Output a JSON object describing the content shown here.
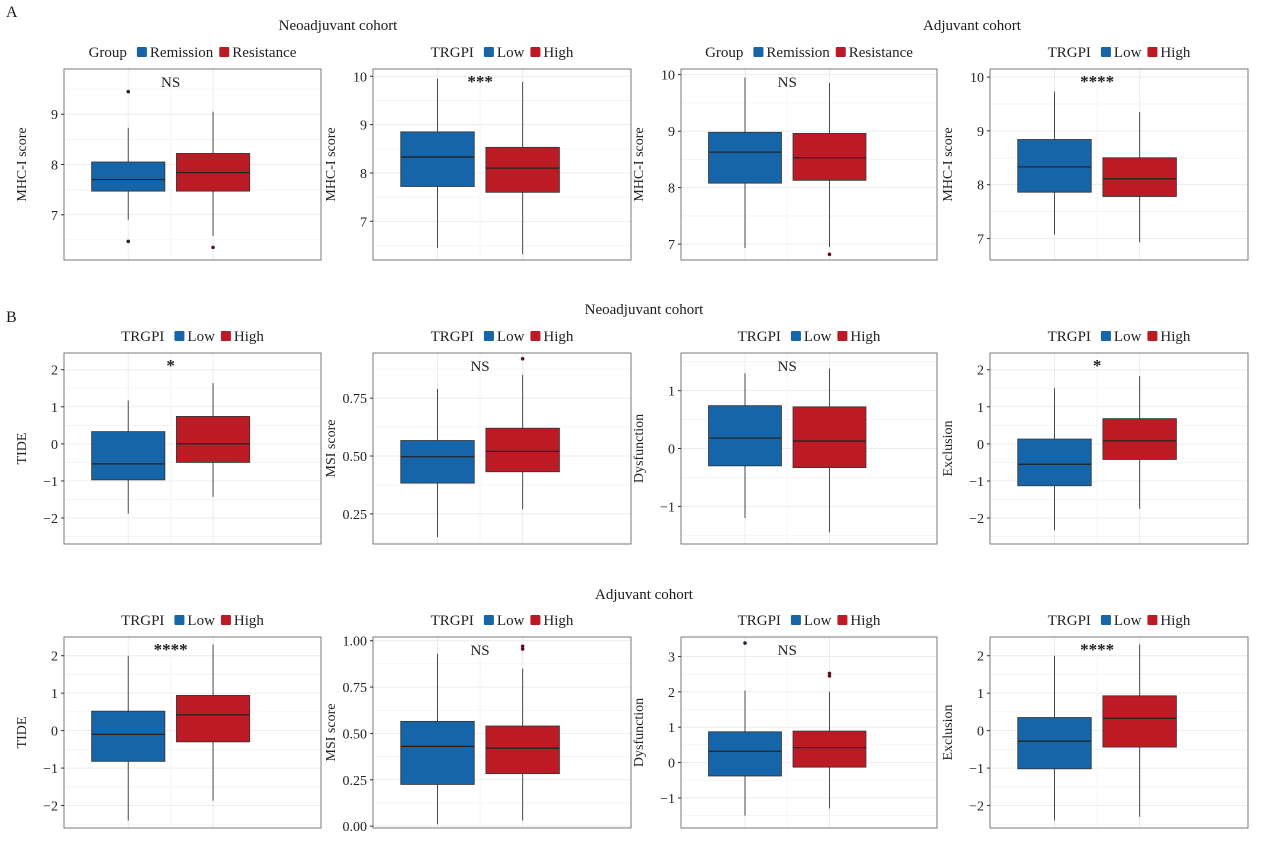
{
  "figure": {
    "section_a_label": "A",
    "section_b_label": "B",
    "colors": {
      "low": "#1565a8",
      "high": "#bc1a24",
      "frame": "#7a7a7a",
      "grid": "#ececec"
    }
  },
  "cohorts": {
    "a_left": "Neoadjuvant cohort",
    "a_right": "Adjuvant cohort",
    "b_top": "Neoadjuvant cohort",
    "b_bottom": "Adjuvant cohort"
  },
  "chart_data": [
    {
      "id": "A1",
      "type": "box",
      "title": "",
      "ylabel": "MHC-I score",
      "legend_title": "Group",
      "legend": [
        "Remission",
        "Resistance"
      ],
      "annotation": "NS",
      "ylim": [
        6.1,
        9.9
      ],
      "yticks": [
        7,
        8,
        9
      ],
      "series": [
        {
          "name": "Remission",
          "min": 6.9,
          "q1": 7.47,
          "median": 7.7,
          "q3": 8.05,
          "max": 8.73,
          "outliers": [
            9.45,
            6.47
          ]
        },
        {
          "name": "Resistance",
          "min": 6.58,
          "q1": 7.47,
          "median": 7.84,
          "q3": 8.22,
          "max": 9.05,
          "outliers": [
            6.35
          ]
        }
      ]
    },
    {
      "id": "A2",
      "type": "box",
      "title": "",
      "ylabel": "MHC-I score",
      "legend_title": "TRGPI",
      "legend": [
        "Low",
        "High"
      ],
      "annotation": "***",
      "ylim": [
        6.2,
        10.15
      ],
      "yticks": [
        7,
        8,
        9,
        10
      ],
      "series": [
        {
          "name": "Low",
          "min": 6.45,
          "q1": 7.72,
          "median": 8.33,
          "q3": 8.85,
          "max": 9.95,
          "outliers": []
        },
        {
          "name": "High",
          "min": 6.32,
          "q1": 7.6,
          "median": 8.1,
          "q3": 8.53,
          "max": 9.88,
          "outliers": []
        }
      ]
    },
    {
      "id": "A3",
      "type": "box",
      "title": "",
      "ylabel": "MHC-I score",
      "legend_title": "Group",
      "legend": [
        "Remission",
        "Resistance"
      ],
      "annotation": "NS",
      "ylim": [
        6.72,
        10.1
      ],
      "yticks": [
        7,
        8,
        9,
        10
      ],
      "series": [
        {
          "name": "Remission",
          "min": 6.93,
          "q1": 8.08,
          "median": 8.63,
          "q3": 8.98,
          "max": 9.95,
          "outliers": []
        },
        {
          "name": "Resistance",
          "min": 6.95,
          "q1": 8.13,
          "median": 8.53,
          "q3": 8.96,
          "max": 9.85,
          "outliers": [
            6.82
          ]
        }
      ]
    },
    {
      "id": "A4",
      "type": "box",
      "title": "",
      "ylabel": "MHC-I score",
      "legend_title": "TRGPI",
      "legend": [
        "Low",
        "High"
      ],
      "annotation": "****",
      "ylim": [
        6.6,
        10.15
      ],
      "yticks": [
        7,
        8,
        9,
        10
      ],
      "series": [
        {
          "name": "Low",
          "min": 7.07,
          "q1": 7.86,
          "median": 8.33,
          "q3": 8.84,
          "max": 9.73,
          "outliers": []
        },
        {
          "name": "High",
          "min": 6.93,
          "q1": 7.78,
          "median": 8.11,
          "q3": 8.5,
          "max": 9.35,
          "outliers": []
        }
      ]
    },
    {
      "id": "B1",
      "type": "box",
      "title": "",
      "ylabel": "TIDE",
      "legend_title": "TRGPI",
      "legend": [
        "Low",
        "High"
      ],
      "annotation": "*",
      "ylim": [
        -2.7,
        2.45
      ],
      "yticks": [
        -2,
        -1,
        0,
        1,
        2
      ],
      "series": [
        {
          "name": "Low",
          "min": -1.88,
          "q1": -0.97,
          "median": -0.54,
          "q3": 0.33,
          "max": 1.17,
          "outliers": []
        },
        {
          "name": "High",
          "min": -1.43,
          "q1": -0.5,
          "median": 0.0,
          "q3": 0.74,
          "max": 1.64,
          "outliers": []
        }
      ]
    },
    {
      "id": "B2",
      "type": "box",
      "title": "",
      "ylabel": "MSI score",
      "legend_title": "TRGPI",
      "legend": [
        "Low",
        "High"
      ],
      "annotation": "NS",
      "ylim": [
        0.12,
        0.945
      ],
      "yticks": [
        0.25,
        0.5,
        0.75
      ],
      "ytick_labels": [
        "0.25",
        "0.50",
        "0.75"
      ],
      "series": [
        {
          "name": "Low",
          "min": 0.15,
          "q1": 0.383,
          "median": 0.497,
          "q3": 0.567,
          "max": 0.79,
          "outliers": []
        },
        {
          "name": "High",
          "min": 0.27,
          "q1": 0.432,
          "median": 0.52,
          "q3": 0.62,
          "max": 0.85,
          "outliers": [
            0.92
          ]
        }
      ]
    },
    {
      "id": "B3",
      "type": "box",
      "title": "",
      "ylabel": "Dysfunction",
      "legend_title": "TRGPI",
      "legend": [
        "Low",
        "High"
      ],
      "annotation": "NS",
      "ylim": [
        -1.65,
        1.65
      ],
      "yticks": [
        -1,
        0,
        1
      ],
      "series": [
        {
          "name": "Low",
          "min": -1.2,
          "q1": -0.3,
          "median": 0.18,
          "q3": 0.74,
          "max": 1.3,
          "outliers": []
        },
        {
          "name": "High",
          "min": -1.45,
          "q1": -0.33,
          "median": 0.13,
          "q3": 0.72,
          "max": 1.38,
          "outliers": []
        }
      ]
    },
    {
      "id": "B4",
      "type": "box",
      "title": "",
      "ylabel": "Exclusion",
      "legend_title": "TRGPI",
      "legend": [
        "Low",
        "High"
      ],
      "annotation": "*",
      "ylim": [
        -2.7,
        2.45
      ],
      "yticks": [
        -2,
        -1,
        0,
        1,
        2
      ],
      "series": [
        {
          "name": "Low",
          "min": -2.33,
          "q1": -1.13,
          "median": -0.55,
          "q3": 0.13,
          "max": 1.5,
          "outliers": []
        },
        {
          "name": "High",
          "min": -1.75,
          "q1": -0.42,
          "median": 0.08,
          "q3": 0.68,
          "max": 1.83,
          "outliers": []
        }
      ]
    },
    {
      "id": "B5",
      "type": "box",
      "title": "",
      "ylabel": "TIDE",
      "legend_title": "TRGPI",
      "legend": [
        "Low",
        "High"
      ],
      "annotation": "****",
      "ylim": [
        -2.6,
        2.5
      ],
      "yticks": [
        -2,
        -1,
        0,
        1,
        2
      ],
      "series": [
        {
          "name": "Low",
          "min": -2.4,
          "q1": -0.82,
          "median": -0.1,
          "q3": 0.52,
          "max": 2.0,
          "outliers": []
        },
        {
          "name": "High",
          "min": -1.87,
          "q1": -0.3,
          "median": 0.42,
          "q3": 0.94,
          "max": 2.3,
          "outliers": []
        }
      ]
    },
    {
      "id": "B6",
      "type": "box",
      "title": "",
      "ylabel": "MSI score",
      "legend_title": "TRGPI",
      "legend": [
        "Low",
        "High"
      ],
      "annotation": "NS",
      "ylim": [
        -0.01,
        1.02
      ],
      "yticks": [
        0.0,
        0.25,
        0.5,
        0.75,
        1.0
      ],
      "ytick_labels": [
        "0.00",
        "0.25",
        "0.50",
        "0.75",
        "1.00"
      ],
      "series": [
        {
          "name": "Low",
          "min": 0.01,
          "q1": 0.225,
          "median": 0.43,
          "q3": 0.565,
          "max": 0.93,
          "outliers": []
        },
        {
          "name": "High",
          "min": 0.03,
          "q1": 0.283,
          "median": 0.42,
          "q3": 0.54,
          "max": 0.85,
          "outliers": [
            0.97,
            0.955
          ]
        }
      ]
    },
    {
      "id": "B7",
      "type": "box",
      "title": "",
      "ylabel": "Dysfunction",
      "legend_title": "TRGPI",
      "legend": [
        "Low",
        "High"
      ],
      "annotation": "NS",
      "ylim": [
        -1.85,
        3.55
      ],
      "yticks": [
        -1,
        0,
        1,
        2,
        3
      ],
      "series": [
        {
          "name": "Low",
          "min": -1.5,
          "q1": -0.38,
          "median": 0.32,
          "q3": 0.87,
          "max": 2.03,
          "outliers": [
            3.38
          ]
        },
        {
          "name": "High",
          "min": -1.3,
          "q1": -0.13,
          "median": 0.42,
          "q3": 0.89,
          "max": 2.0,
          "outliers": [
            2.52,
            2.45
          ]
        }
      ]
    },
    {
      "id": "B8",
      "type": "box",
      "title": "",
      "ylabel": "Exclusion",
      "legend_title": "TRGPI",
      "legend": [
        "Low",
        "High"
      ],
      "annotation": "****",
      "ylim": [
        -2.6,
        2.5
      ],
      "yticks": [
        -2,
        -1,
        0,
        1,
        2
      ],
      "series": [
        {
          "name": "Low",
          "min": -2.4,
          "q1": -1.02,
          "median": -0.28,
          "q3": 0.35,
          "max": 2.0,
          "outliers": []
        },
        {
          "name": "High",
          "min": -2.3,
          "q1": -0.44,
          "median": 0.33,
          "q3": 0.93,
          "max": 2.3,
          "outliers": []
        }
      ]
    }
  ]
}
